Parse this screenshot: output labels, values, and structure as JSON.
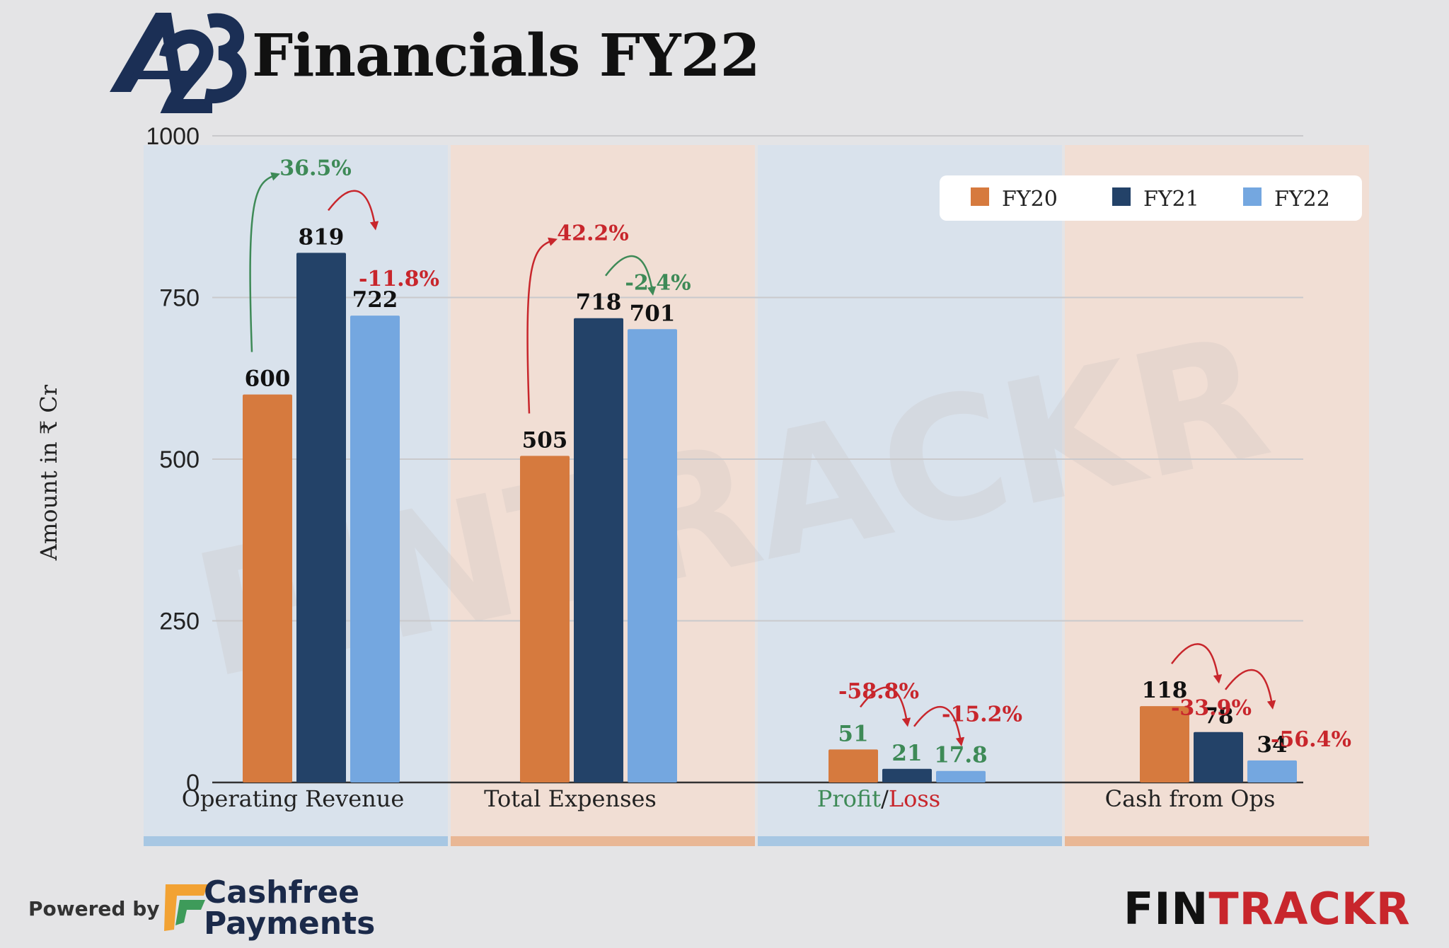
{
  "header": {
    "logo_text": "A23",
    "title": "Financials FY22"
  },
  "chart_data": {
    "type": "bar",
    "categories": [
      "Operating Revenue",
      "Total Expenses",
      "Profit/Loss",
      "Cash from Ops"
    ],
    "series": [
      {
        "name": "FY20",
        "values": [
          600,
          505,
          51,
          118
        ],
        "color": "#d67a3e"
      },
      {
        "name": "FY21",
        "values": [
          819,
          718,
          21,
          78
        ],
        "color": "#234268"
      },
      {
        "name": "FY22",
        "values": [
          722,
          701,
          17.8,
          34
        ],
        "color": "#74a7e0"
      }
    ],
    "value_labels": [
      [
        "600",
        "819",
        "722"
      ],
      [
        "505",
        "718",
        "701"
      ],
      [
        "51",
        "21",
        "17.8"
      ],
      [
        "118",
        "78",
        "34"
      ]
    ],
    "value_label_colors": [
      [
        "#111111",
        "#111111",
        "#111111"
      ],
      [
        "#111111",
        "#111111",
        "#111111"
      ],
      [
        "#3e8a57",
        "#3e8a57",
        "#3e8a57"
      ],
      [
        "#111111",
        "#111111",
        "#111111"
      ]
    ],
    "growth": [
      [
        {
          "text": "36.5%",
          "color": "#3e8a57"
        },
        {
          "text": "-11.8%",
          "color": "#c8262c"
        }
      ],
      [
        {
          "text": "42.2%",
          "color": "#c8262c"
        },
        {
          "text": "-2.4%",
          "color": "#3e8a57"
        }
      ],
      [
        {
          "text": "-58.8%",
          "color": "#c8262c"
        },
        {
          "text": "-15.2%",
          "color": "#c8262c"
        }
      ],
      [
        {
          "text": "-33.9%",
          "color": "#c8262c"
        },
        {
          "text": "-56.4%",
          "color": "#c8262c"
        }
      ]
    ],
    "category_label_parts": [
      [
        {
          "text": "Operating Revenue",
          "color": "#222222"
        }
      ],
      [
        {
          "text": "Total Expenses",
          "color": "#222222"
        }
      ],
      [
        {
          "text": "Profit",
          "color": "#3e8a57"
        },
        {
          "text": "/",
          "color": "#222222"
        },
        {
          "text": "Loss",
          "color": "#c8262c"
        }
      ],
      [
        {
          "text": "Cash from Ops",
          "color": "#222222"
        }
      ]
    ],
    "ylabel": "Amount in ₹ Cr",
    "ylim": [
      0,
      1000
    ],
    "yticks": [
      0,
      250,
      500,
      750,
      1000
    ],
    "grid": true,
    "legend_position": "top-right",
    "watermark": "FINTRACKR",
    "panel_colors": [
      "#d5e1ee",
      "#f5dccd",
      "#d5e1ee",
      "#f5dccd"
    ],
    "panel_bar_colors": [
      "#a7c7e3",
      "#e9b795",
      "#a7c7e3",
      "#e9b795"
    ]
  },
  "footer": {
    "powered_by": "Powered by",
    "cashfree_line1": "Cashfree",
    "cashfree_line2": "Payments",
    "brand_part1": "FIN",
    "brand_part2": "TRACKR"
  }
}
